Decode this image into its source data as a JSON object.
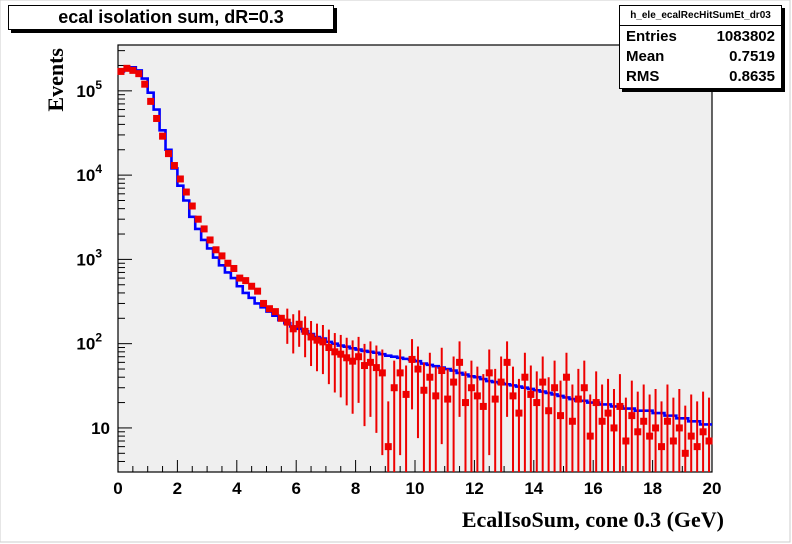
{
  "chart_data": {
    "type": "line",
    "title": "ecal isolation sum, dR=0.3",
    "xlabel": "EcalIsoSum, cone 0.3 (GeV)",
    "ylabel": "Events",
    "xlim": [
      0,
      20
    ],
    "ylim": [
      3,
      350000
    ],
    "y_scale": "log",
    "grid": false,
    "x_ticks": [
      "0",
      "2",
      "4",
      "6",
      "8",
      "10",
      "12",
      "14",
      "16",
      "18",
      "20"
    ],
    "y_ticks": [
      {
        "value": 10,
        "base": "10",
        "exp": ""
      },
      {
        "value": 100,
        "base": "10",
        "exp": "2"
      },
      {
        "value": 1000,
        "base": "10",
        "exp": "3"
      },
      {
        "value": 10000,
        "base": "10",
        "exp": "4"
      },
      {
        "value": 100000,
        "base": "10",
        "exp": "5"
      }
    ],
    "stats": {
      "name": "h_ele_ecalRecHitSumEt_dr03",
      "rows": [
        {
          "label": "Entries",
          "value": "1083802"
        },
        {
          "label": "Mean",
          "value": "0.7519"
        },
        {
          "label": "RMS",
          "value": "0.8635"
        }
      ]
    },
    "series": [
      {
        "kind": "histogram",
        "color": "#0000ff",
        "bin_width": 0.2,
        "values": [
          170000,
          180000,
          190000,
          175000,
          140000,
          95000,
          60000,
          34000,
          20000,
          12000,
          7500,
          5000,
          3200,
          2300,
          1700,
          1350,
          1050,
          850,
          700,
          600,
          480,
          400,
          350,
          300,
          270,
          240,
          215,
          190,
          175,
          160,
          150,
          140,
          130,
          120,
          115,
          105,
          100,
          95,
          92,
          88,
          85,
          82,
          80,
          78,
          75,
          72,
          70,
          68,
          66,
          64,
          62,
          58,
          56,
          54,
          52,
          50,
          48,
          45,
          43,
          41,
          40,
          38,
          36,
          35,
          34,
          33,
          32,
          31,
          30,
          29,
          28,
          27,
          26,
          25,
          24,
          23,
          22,
          21,
          21,
          20,
          20,
          19,
          19,
          18,
          18,
          17,
          17,
          16,
          16,
          16,
          15,
          15,
          14,
          14,
          13,
          13,
          12,
          12,
          11,
          11
        ]
      },
      {
        "kind": "points",
        "color": "#ee0000",
        "points": [
          [
            0.1,
            170000
          ],
          [
            0.3,
            185000
          ],
          [
            0.5,
            175000
          ],
          [
            0.7,
            160000
          ],
          [
            0.9,
            120000
          ],
          [
            1.1,
            75000
          ],
          [
            1.3,
            47000
          ],
          [
            1.5,
            29000
          ],
          [
            1.7,
            18000
          ],
          [
            1.9,
            13000
          ],
          [
            2.1,
            9000
          ],
          [
            2.3,
            6300
          ],
          [
            2.5,
            4300
          ],
          [
            2.7,
            3000
          ],
          [
            2.9,
            2300
          ],
          [
            3.1,
            1700
          ],
          [
            3.3,
            1300
          ],
          [
            3.5,
            1100
          ],
          [
            3.7,
            900
          ],
          [
            3.9,
            780
          ],
          [
            4.1,
            600
          ],
          [
            4.3,
            560
          ],
          [
            4.5,
            480
          ],
          [
            4.7,
            420
          ],
          [
            4.9,
            300
          ],
          [
            5.1,
            260
          ],
          [
            5.3,
            240
          ],
          [
            5.5,
            200
          ],
          [
            5.7,
            180
          ],
          [
            5.9,
            150
          ],
          [
            6.1,
            170
          ],
          [
            6.3,
            140
          ],
          [
            6.5,
            120
          ],
          [
            6.7,
            110
          ],
          [
            6.9,
            105
          ],
          [
            7.1,
            90
          ],
          [
            7.3,
            80
          ],
          [
            7.5,
            75
          ],
          [
            7.7,
            68
          ],
          [
            7.9,
            62
          ],
          [
            8.1,
            70
          ],
          [
            8.3,
            55
          ],
          [
            8.5,
            60
          ],
          [
            8.7,
            52
          ],
          [
            8.9,
            45
          ],
          [
            9.1,
            6
          ],
          [
            9.3,
            30
          ],
          [
            9.5,
            45
          ],
          [
            9.7,
            25
          ],
          [
            9.9,
            65
          ],
          [
            10.1,
            50
          ],
          [
            10.3,
            28
          ],
          [
            10.5,
            40
          ],
          [
            10.7,
            24
          ],
          [
            10.9,
            48
          ],
          [
            11.1,
            22
          ],
          [
            11.3,
            35
          ],
          [
            11.5,
            60
          ],
          [
            11.7,
            20
          ],
          [
            11.9,
            30
          ],
          [
            12.1,
            24
          ],
          [
            12.3,
            18
          ],
          [
            12.5,
            45
          ],
          [
            12.7,
            22
          ],
          [
            12.9,
            35
          ],
          [
            13.1,
            60
          ],
          [
            13.3,
            24
          ],
          [
            13.5,
            15
          ],
          [
            13.7,
            40
          ],
          [
            13.9,
            25
          ],
          [
            14.1,
            20
          ],
          [
            14.3,
            35
          ],
          [
            14.5,
            16
          ],
          [
            14.7,
            30
          ],
          [
            14.9,
            14
          ],
          [
            15.1,
            40
          ],
          [
            15.3,
            12
          ],
          [
            15.5,
            22
          ],
          [
            15.7,
            30
          ],
          [
            15.9,
            8
          ],
          [
            16.1,
            20
          ],
          [
            16.3,
            12
          ],
          [
            16.5,
            15
          ],
          [
            16.7,
            10
          ],
          [
            16.9,
            18
          ],
          [
            17.1,
            7
          ],
          [
            17.3,
            14
          ],
          [
            17.5,
            9
          ],
          [
            17.7,
            12
          ],
          [
            17.9,
            8
          ],
          [
            18.1,
            10
          ],
          [
            18.3,
            6
          ],
          [
            18.5,
            12
          ],
          [
            18.7,
            7
          ],
          [
            18.9,
            10
          ],
          [
            19.1,
            5
          ],
          [
            19.3,
            8
          ],
          [
            19.5,
            6
          ],
          [
            19.7,
            9
          ],
          [
            19.9,
            7
          ]
        ]
      }
    ]
  }
}
